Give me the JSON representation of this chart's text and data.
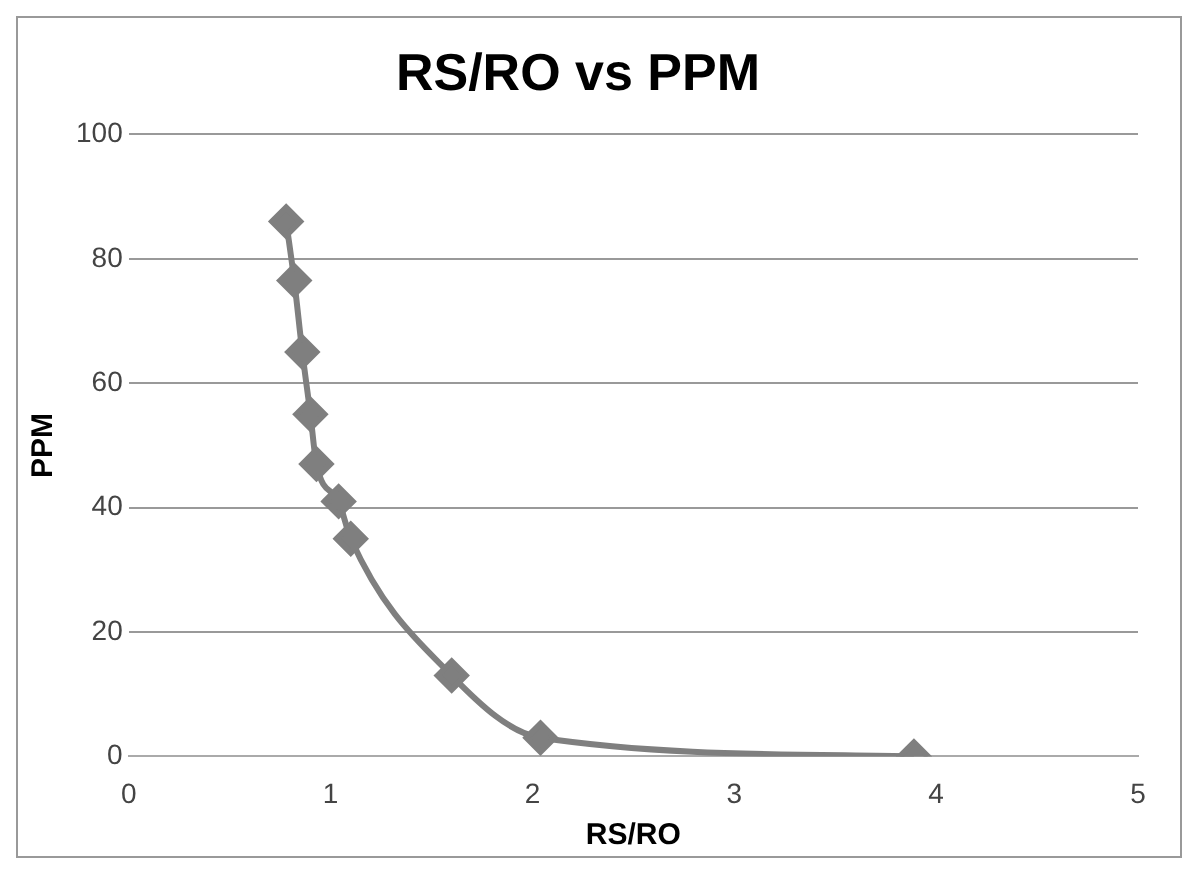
{
  "chart_data": {
    "type": "line",
    "title": "RS/RO vs PPM",
    "xlabel": "RS/RO",
    "ylabel": "PPM",
    "series": [
      {
        "color": "#7f7f7f",
        "x": [
          0.78,
          0.82,
          0.86,
          0.9,
          0.93,
          1.04,
          1.1,
          1.6,
          2.04,
          3.89
        ],
        "values": [
          86,
          76.5,
          65,
          55,
          47,
          41,
          35,
          13,
          3,
          0
        ]
      }
    ],
    "xlim": [
      0,
      5
    ],
    "xticks": [
      0,
      1,
      2,
      3,
      4,
      5
    ],
    "ylim": [
      0,
      100
    ],
    "yticks": [
      0,
      20,
      40,
      60,
      80,
      100
    ],
    "grid": "y",
    "legend": false,
    "marker": "diamond",
    "line_style": "solid"
  }
}
